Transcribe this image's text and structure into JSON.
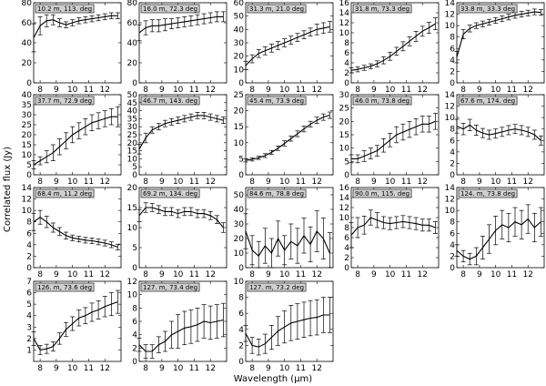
{
  "figure": {
    "xlabel": "Wavelength (μm)",
    "ylabel": "Correlated flux (Jy)"
  },
  "chart_data": [
    {
      "type": "line",
      "title": "10.2 m, 113. deg",
      "xlim": [
        7.6,
        13.0
      ],
      "ylim": [
        0,
        80
      ],
      "yticks": [
        0,
        20,
        40,
        60,
        80
      ],
      "xticks": [
        8,
        9,
        10,
        11,
        12
      ],
      "x": [
        7.6,
        8.0,
        8.4,
        8.8,
        9.2,
        9.6,
        10.0,
        10.4,
        10.8,
        11.2,
        11.6,
        12.0,
        12.4,
        12.8
      ],
      "y": [
        45,
        57,
        62,
        63,
        60,
        58,
        60,
        62,
        63,
        64,
        65,
        66,
        67,
        67
      ],
      "err": [
        14,
        9,
        6,
        5,
        4,
        3,
        3,
        3,
        3,
        3,
        3,
        3,
        3,
        3
      ]
    },
    {
      "type": "line",
      "title": "16.0 m, 72.3 deg",
      "xlim": [
        7.6,
        13.0
      ],
      "ylim": [
        0,
        80
      ],
      "yticks": [
        0,
        20,
        40,
        60,
        80
      ],
      "xticks": [
        8,
        9,
        10,
        11,
        12
      ],
      "x": [
        7.6,
        8.0,
        8.4,
        8.8,
        9.2,
        9.6,
        10.0,
        10.4,
        10.8,
        11.2,
        11.6,
        12.0,
        12.4,
        12.8
      ],
      "y": [
        50,
        55,
        57,
        57,
        58,
        59,
        60,
        61,
        62,
        63,
        64,
        65,
        66,
        66
      ],
      "err": [
        8,
        7,
        6,
        6,
        6,
        5,
        5,
        5,
        5,
        5,
        5,
        5,
        5,
        5
      ]
    },
    {
      "type": "line",
      "title": "31.3 m, 21.0 deg",
      "xlim": [
        7.6,
        13.0
      ],
      "ylim": [
        0,
        60
      ],
      "yticks": [
        0,
        10,
        20,
        30,
        40,
        50,
        60
      ],
      "xticks": [
        8,
        9,
        10,
        11,
        12
      ],
      "x": [
        7.6,
        8.0,
        8.4,
        8.8,
        9.2,
        9.6,
        10.0,
        10.4,
        10.8,
        11.2,
        11.6,
        12.0,
        12.4,
        12.8
      ],
      "y": [
        13,
        18,
        22,
        24,
        26,
        28,
        30,
        32,
        34,
        36,
        38,
        40,
        41,
        42
      ],
      "err": [
        3,
        3,
        3,
        3,
        3,
        3,
        3,
        3,
        3,
        3,
        3,
        4,
        4,
        4
      ]
    },
    {
      "type": "line",
      "title": "31.8 m, 73.3 deg",
      "xlim": [
        7.6,
        13.0
      ],
      "ylim": [
        0,
        16
      ],
      "yticks": [
        0,
        2,
        4,
        6,
        8,
        10,
        12,
        14,
        16
      ],
      "xticks": [
        8,
        9,
        10,
        11,
        12
      ],
      "x": [
        7.6,
        8.0,
        8.4,
        8.8,
        9.2,
        9.6,
        10.0,
        10.4,
        10.8,
        11.2,
        11.6,
        12.0,
        12.4,
        12.8
      ],
      "y": [
        2.5,
        2.7,
        3.0,
        3.3,
        3.8,
        4.5,
        5.3,
        6.3,
        7.3,
        8.3,
        9.3,
        10.3,
        11.0,
        11.8
      ],
      "err": [
        0.5,
        0.5,
        0.5,
        0.5,
        0.6,
        0.7,
        0.8,
        0.8,
        0.9,
        0.9,
        1.0,
        1.0,
        1.1,
        1.2
      ]
    },
    {
      "type": "line",
      "title": "33.8 m, 33.3 deg",
      "xlim": [
        7.6,
        13.0
      ],
      "ylim": [
        0,
        14
      ],
      "yticks": [
        0,
        2,
        4,
        6,
        8,
        10,
        12,
        14
      ],
      "xticks": [
        8,
        9,
        10,
        11,
        12
      ],
      "x": [
        7.6,
        8.0,
        8.4,
        8.8,
        9.2,
        9.6,
        10.0,
        10.4,
        10.8,
        11.2,
        11.6,
        12.0,
        12.4,
        12.8
      ],
      "y": [
        4.5,
        8.5,
        9.5,
        10.0,
        10.3,
        10.6,
        10.9,
        11.2,
        11.5,
        11.8,
        12.0,
        12.2,
        12.4,
        12.3
      ],
      "err": [
        1.0,
        0.8,
        0.6,
        0.5,
        0.5,
        0.5,
        0.5,
        0.5,
        0.5,
        0.5,
        0.5,
        0.5,
        0.5,
        0.5
      ]
    },
    {
      "type": "line",
      "title": "37.7 m, 72.9 deg",
      "xlim": [
        7.6,
        13.0
      ],
      "ylim": [
        0,
        40
      ],
      "yticks": [
        0,
        5,
        10,
        15,
        20,
        25,
        30,
        35,
        40
      ],
      "xticks": [
        8,
        9,
        10,
        11,
        12
      ],
      "x": [
        7.6,
        8.0,
        8.4,
        8.8,
        9.2,
        9.6,
        10.0,
        10.4,
        10.8,
        11.2,
        11.6,
        12.0,
        12.4,
        12.8
      ],
      "y": [
        5,
        7,
        9,
        11,
        14,
        17,
        20,
        22,
        24,
        26,
        27,
        28,
        29,
        29
      ],
      "err": [
        2,
        2,
        3,
        4,
        4,
        4,
        4,
        4,
        4,
        4,
        4,
        4,
        4,
        5
      ]
    },
    {
      "type": "line",
      "title": "46.7 m, 143. deg",
      "xlim": [
        7.6,
        13.0
      ],
      "ylim": [
        0,
        50
      ],
      "yticks": [
        0,
        5,
        10,
        15,
        20,
        25,
        30,
        35,
        40,
        45,
        50
      ],
      "xticks": [
        8,
        9,
        10,
        11,
        12
      ],
      "x": [
        7.6,
        8.0,
        8.4,
        8.8,
        9.2,
        9.6,
        10.0,
        10.4,
        10.8,
        11.2,
        11.6,
        12.0,
        12.4,
        12.8
      ],
      "y": [
        16,
        23,
        28,
        30,
        32,
        33,
        34,
        35,
        36,
        37,
        37,
        36,
        35,
        34
      ],
      "err": [
        3,
        3,
        2,
        2,
        2,
        2,
        2,
        2,
        2,
        2,
        2,
        2,
        2,
        2
      ]
    },
    {
      "type": "line",
      "title": "45.4 m, 73.9 deg",
      "xlim": [
        7.6,
        13.0
      ],
      "ylim": [
        0,
        25
      ],
      "yticks": [
        0,
        5,
        10,
        15,
        20,
        25
      ],
      "xticks": [
        8,
        9,
        10,
        11,
        12
      ],
      "x": [
        7.6,
        8.0,
        8.4,
        8.8,
        9.2,
        9.6,
        10.0,
        10.4,
        10.8,
        11.2,
        11.6,
        12.0,
        12.4,
        12.8
      ],
      "y": [
        4.5,
        4.8,
        5.3,
        6.0,
        7.0,
        8.3,
        9.8,
        11.3,
        12.8,
        14.3,
        15.8,
        17.0,
        18.0,
        18.6
      ],
      "err": [
        0.5,
        0.5,
        0.5,
        0.6,
        0.6,
        0.7,
        0.8,
        0.8,
        0.9,
        0.9,
        0.9,
        1.0,
        1.0,
        1.0
      ]
    },
    {
      "type": "line",
      "title": "46.0 m, 73.8 deg",
      "xlim": [
        7.6,
        13.0
      ],
      "ylim": [
        0,
        30
      ],
      "yticks": [
        0,
        5,
        10,
        15,
        20,
        25,
        30
      ],
      "xticks": [
        8,
        9,
        10,
        11,
        12
      ],
      "x": [
        7.6,
        8.0,
        8.4,
        8.8,
        9.2,
        9.6,
        10.0,
        10.4,
        10.8,
        11.2,
        11.6,
        12.0,
        12.4,
        12.8
      ],
      "y": [
        6,
        6,
        7,
        8,
        9,
        11,
        13,
        15,
        16,
        17,
        18,
        19,
        19,
        20
      ],
      "err": [
        1.5,
        1.5,
        2,
        2,
        2,
        2.5,
        2.5,
        3,
        3,
        3,
        3,
        3,
        3,
        3
      ]
    },
    {
      "type": "line",
      "title": "67.6 m, 174. deg",
      "xlim": [
        7.6,
        13.0
      ],
      "ylim": [
        0,
        14
      ],
      "yticks": [
        0,
        2,
        4,
        6,
        8,
        10,
        12,
        14
      ],
      "xticks": [
        8,
        9,
        10,
        11,
        12
      ],
      "x": [
        7.6,
        8.0,
        8.4,
        8.8,
        9.2,
        9.6,
        10.0,
        10.4,
        10.8,
        11.2,
        11.6,
        12.0,
        12.4,
        12.8
      ],
      "y": [
        8.5,
        8.0,
        8.7,
        7.8,
        7.3,
        7.0,
        7.2,
        7.5,
        7.8,
        8.0,
        7.8,
        7.5,
        7.0,
        6.0
      ],
      "err": [
        1.2,
        1.0,
        1.0,
        0.9,
        0.8,
        0.8,
        0.8,
        0.8,
        0.8,
        0.8,
        0.8,
        0.8,
        0.8,
        0.8
      ]
    },
    {
      "type": "line",
      "title": "68.4 m, 11.2 deg",
      "xlim": [
        7.6,
        13.0
      ],
      "ylim": [
        0,
        14
      ],
      "yticks": [
        0,
        2,
        4,
        6,
        8,
        10,
        12,
        14
      ],
      "xticks": [
        8,
        9,
        10,
        11,
        12
      ],
      "x": [
        7.6,
        8.0,
        8.4,
        8.8,
        9.2,
        9.6,
        10.0,
        10.4,
        10.8,
        11.2,
        11.6,
        12.0,
        12.4,
        12.8
      ],
      "y": [
        8.0,
        8.8,
        8.0,
        7.0,
        6.3,
        5.6,
        5.2,
        5.0,
        4.8,
        4.7,
        4.5,
        4.3,
        4.0,
        3.6
      ],
      "err": [
        1.5,
        1.2,
        1.0,
        0.8,
        0.7,
        0.6,
        0.5,
        0.5,
        0.5,
        0.5,
        0.5,
        0.5,
        0.5,
        0.5
      ]
    },
    {
      "type": "line",
      "title": "69.2 m, 134. deg",
      "xlim": [
        7.6,
        13.0
      ],
      "ylim": [
        0,
        20
      ],
      "yticks": [
        0,
        5,
        10,
        15,
        20
      ],
      "xticks": [
        8,
        9,
        10,
        11,
        12
      ],
      "x": [
        7.6,
        8.0,
        8.4,
        8.8,
        9.2,
        9.6,
        10.0,
        10.4,
        10.8,
        11.2,
        11.6,
        12.0,
        12.4,
        12.8
      ],
      "y": [
        13,
        15,
        15,
        14.5,
        14,
        14,
        13.5,
        14,
        14,
        13.5,
        13.5,
        13,
        12,
        10
      ],
      "err": [
        1.5,
        1.2,
        1.0,
        1.0,
        1.0,
        1.0,
        1.0,
        1.0,
        1.0,
        1.0,
        1.0,
        1.0,
        1.0,
        1.2
      ]
    },
    {
      "type": "line",
      "title": "84.6 m, 78.8 deg",
      "xlim": [
        7.6,
        13.0
      ],
      "ylim": [
        0,
        55
      ],
      "yticks": [
        0,
        10,
        20,
        30,
        40,
        50
      ],
      "xticks": [
        8,
        9,
        10,
        11,
        12
      ],
      "x": [
        7.6,
        8.0,
        8.4,
        8.8,
        9.2,
        9.6,
        10.0,
        10.4,
        10.8,
        11.2,
        11.6,
        12.0,
        12.4,
        12.8
      ],
      "y": [
        25,
        12,
        8,
        15,
        10,
        20,
        12,
        18,
        15,
        22,
        16,
        25,
        20,
        10
      ],
      "err": [
        12,
        10,
        10,
        12,
        10,
        12,
        10,
        12,
        12,
        12,
        12,
        14,
        14,
        14
      ]
    },
    {
      "type": "line",
      "title": "90.0 m, 115. deg",
      "xlim": [
        7.6,
        13.0
      ],
      "ylim": [
        0,
        16
      ],
      "yticks": [
        0,
        2,
        4,
        6,
        8,
        10,
        12,
        14,
        16
      ],
      "xticks": [
        8,
        9,
        10,
        11,
        12
      ],
      "x": [
        7.6,
        8.0,
        8.4,
        8.8,
        9.2,
        9.6,
        10.0,
        10.4,
        10.8,
        11.2,
        11.6,
        12.0,
        12.4,
        12.8
      ],
      "y": [
        6.5,
        8.0,
        8.5,
        10.0,
        9.5,
        9.0,
        8.8,
        9.0,
        9.2,
        9.0,
        8.8,
        8.5,
        8.5,
        8.0
      ],
      "err": [
        2.5,
        2.0,
        1.8,
        1.5,
        1.5,
        1.2,
        1.2,
        1.2,
        1.2,
        1.2,
        1.2,
        1.2,
        1.2,
        1.2
      ]
    },
    {
      "type": "line",
      "title": "124. m, 73.8 deg",
      "xlim": [
        7.6,
        13.0
      ],
      "ylim": [
        0,
        14
      ],
      "yticks": [
        0,
        2,
        4,
        6,
        8,
        10,
        12,
        14
      ],
      "xticks": [
        8,
        9,
        10,
        11,
        12
      ],
      "x": [
        7.6,
        8.0,
        8.4,
        8.8,
        9.2,
        9.6,
        10.0,
        10.4,
        10.8,
        11.2,
        11.6,
        12.0,
        12.4,
        12.8
      ],
      "y": [
        3.0,
        2.0,
        1.5,
        2.0,
        3.5,
        5.0,
        6.5,
        7.5,
        7.0,
        8.0,
        7.5,
        8.5,
        7.0,
        8.0
      ],
      "err": [
        1.0,
        1.0,
        1.0,
        1.5,
        2.0,
        2.5,
        2.5,
        2.5,
        2.5,
        2.5,
        2.5,
        2.5,
        2.5,
        2.5
      ]
    },
    {
      "type": "line",
      "title": "126. m, 73.6 deg",
      "xlim": [
        7.6,
        13.0
      ],
      "ylim": [
        0,
        7
      ],
      "yticks": [
        1,
        2,
        3,
        4,
        5,
        6,
        7
      ],
      "xticks": [
        8,
        9,
        10,
        11,
        12
      ],
      "x": [
        7.6,
        8.0,
        8.4,
        8.8,
        9.2,
        9.6,
        10.0,
        10.4,
        10.8,
        11.2,
        11.6,
        12.0,
        12.4,
        12.8
      ],
      "y": [
        2.0,
        1.0,
        1.1,
        1.3,
        2.0,
        2.8,
        3.3,
        3.8,
        4.0,
        4.3,
        4.5,
        4.8,
        5.0,
        5.2
      ],
      "err": [
        0.6,
        0.4,
        0.4,
        0.4,
        0.5,
        0.6,
        0.6,
        0.7,
        0.7,
        0.8,
        0.8,
        0.9,
        1.0,
        1.0
      ]
    },
    {
      "type": "line",
      "title": "127. m, 73.4 deg",
      "xlim": [
        7.6,
        13.0
      ],
      "ylim": [
        0,
        12
      ],
      "yticks": [
        0,
        2,
        4,
        6,
        8,
        10,
        12
      ],
      "xticks": [
        8,
        9,
        10,
        11,
        12
      ],
      "x": [
        7.6,
        8.0,
        8.4,
        8.8,
        9.2,
        9.6,
        10.0,
        10.4,
        10.8,
        11.2,
        11.6,
        12.0,
        12.4,
        12.8
      ],
      "y": [
        2.5,
        1.5,
        1.5,
        2.5,
        3.0,
        4.0,
        4.5,
        5.0,
        5.2,
        5.5,
        6.0,
        5.8,
        6.0,
        6.2
      ],
      "err": [
        1.0,
        1.0,
        1.0,
        1.2,
        1.5,
        2.0,
        2.5,
        2.5,
        2.5,
        2.5,
        2.5,
        2.5,
        2.5,
        2.5
      ]
    },
    {
      "type": "line",
      "title": "127. m, 73.2 deg",
      "xlim": [
        7.6,
        13.0
      ],
      "ylim": [
        0,
        10
      ],
      "yticks": [
        0,
        2,
        4,
        6,
        8,
        10
      ],
      "xticks": [
        8,
        9,
        10,
        11,
        12
      ],
      "x": [
        7.6,
        8.0,
        8.4,
        8.8,
        9.2,
        9.6,
        10.0,
        10.4,
        10.8,
        11.2,
        11.6,
        12.0,
        12.4,
        12.8
      ],
      "y": [
        3.5,
        2.0,
        1.8,
        2.2,
        3.0,
        3.8,
        4.3,
        4.8,
        5.0,
        5.2,
        5.4,
        5.5,
        5.8,
        5.8
      ],
      "err": [
        1.0,
        1.0,
        1.0,
        1.2,
        1.5,
        1.8,
        2.0,
        2.2,
        2.2,
        2.2,
        2.2,
        2.2,
        2.2,
        2.2
      ]
    }
  ]
}
